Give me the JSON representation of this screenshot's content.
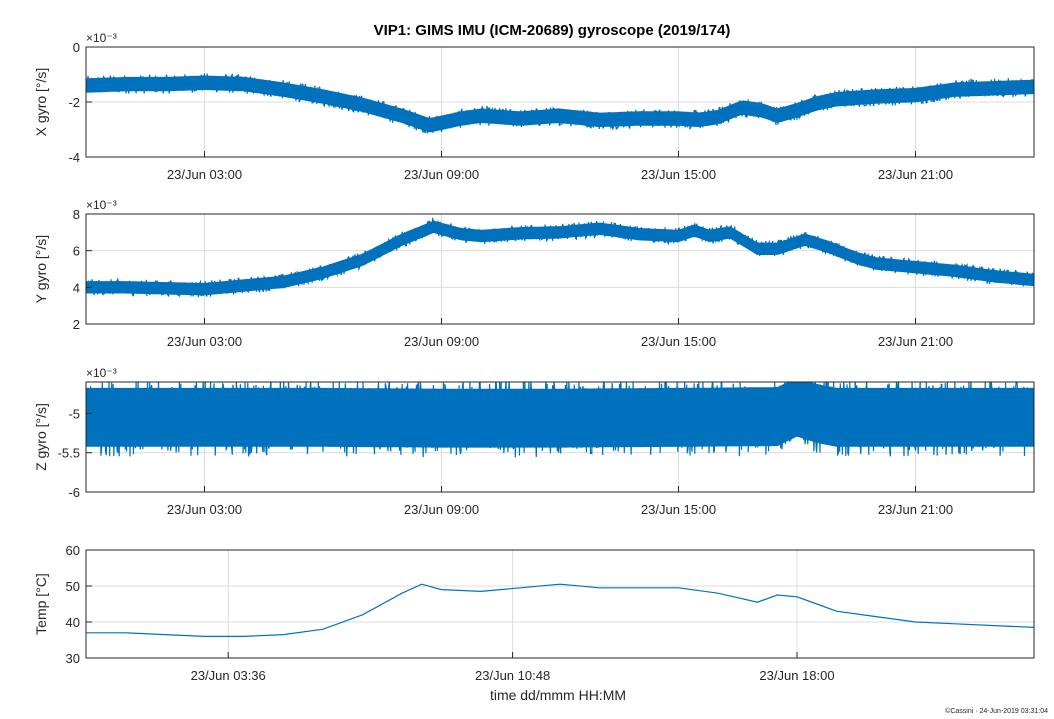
{
  "figure": {
    "title": "VIP1: GIMS IMU (ICM-20689) gyroscope (2019/174)",
    "xlabel": "time dd/mmm HH:MM",
    "footer": "©Cassini · 24-Jun-2019 03:31:04",
    "series_color": "#0072bd"
  },
  "chart_data": [
    {
      "type": "line",
      "ylabel": "X gyro [°/s]",
      "exponent_label": "×10⁻³",
      "ylim": [
        -4,
        0
      ],
      "yticks": [
        -4,
        -2,
        0
      ],
      "ytick_labels": [
        "-4",
        "-2",
        "0"
      ],
      "xlim_hours": [
        0,
        24
      ],
      "xticks_hours": [
        3,
        9,
        15,
        21
      ],
      "xtick_labels": [
        "23/Jun 03:00",
        "23/Jun 09:00",
        "23/Jun 15:00",
        "23/Jun 21:00"
      ],
      "grid": true,
      "noise_amplitude": 0.35,
      "series": [
        {
          "x_hours": [
            0,
            1,
            2,
            3,
            4,
            5,
            6,
            7,
            8,
            8.7,
            9.5,
            10,
            11,
            12,
            13,
            14,
            15,
            15.5,
            16,
            16.6,
            17.1,
            17.5,
            18,
            18.5,
            19,
            20,
            21,
            22,
            23,
            24
          ],
          "values": [
            -1.4,
            -1.35,
            -1.35,
            -1.3,
            -1.35,
            -1.55,
            -1.8,
            -2.1,
            -2.5,
            -2.85,
            -2.6,
            -2.5,
            -2.6,
            -2.5,
            -2.65,
            -2.6,
            -2.6,
            -2.65,
            -2.55,
            -2.2,
            -2.3,
            -2.5,
            -2.3,
            -2.05,
            -1.9,
            -1.8,
            -1.75,
            -1.55,
            -1.5,
            -1.45
          ]
        }
      ]
    },
    {
      "type": "line",
      "ylabel": "Y gyro [°/s]",
      "exponent_label": "×10⁻³",
      "ylim": [
        2,
        8
      ],
      "yticks": [
        2,
        4,
        6,
        8
      ],
      "ytick_labels": [
        "2",
        "4",
        "6",
        "8"
      ],
      "xlim_hours": [
        0,
        24
      ],
      "xticks_hours": [
        3,
        9,
        15,
        21
      ],
      "xtick_labels": [
        "23/Jun 03:00",
        "23/Jun 09:00",
        "23/Jun 15:00",
        "23/Jun 21:00"
      ],
      "grid": true,
      "noise_amplitude": 0.45,
      "series": [
        {
          "x_hours": [
            0,
            1,
            2,
            3,
            4,
            5,
            6,
            7,
            8,
            8.8,
            9.5,
            10,
            11,
            12,
            13,
            14,
            15,
            15.4,
            15.8,
            16.3,
            17,
            17.5,
            18.2,
            18.8,
            19.5,
            20,
            21,
            22,
            23,
            24
          ],
          "values": [
            4.0,
            4.0,
            3.95,
            3.9,
            4.1,
            4.3,
            4.8,
            5.5,
            6.6,
            7.3,
            6.9,
            6.8,
            6.95,
            7.0,
            7.2,
            6.9,
            6.8,
            7.1,
            6.8,
            7.0,
            6.1,
            6.1,
            6.6,
            6.2,
            5.6,
            5.3,
            5.1,
            4.9,
            4.6,
            4.4
          ]
        }
      ]
    },
    {
      "type": "line",
      "ylabel": "Z gyro [°/s]",
      "exponent_label": "×10⁻³",
      "ylim": [
        -6,
        -4.6
      ],
      "yticks": [
        -6,
        -5.5,
        -5
      ],
      "ytick_labels": [
        "-6",
        "-5.5",
        "-5"
      ],
      "xlim_hours": [
        0,
        24
      ],
      "xticks_hours": [
        3,
        9,
        15,
        21
      ],
      "xtick_labels": [
        "23/Jun 03:00",
        "23/Jun 09:00",
        "23/Jun 15:00",
        "23/Jun 21:00"
      ],
      "grid": true,
      "noise_amplitude": 0.5,
      "series": [
        {
          "x_hours": [
            0,
            3,
            6,
            9,
            12,
            15,
            17.5,
            18,
            18.5,
            19,
            21,
            24
          ],
          "values": [
            -5.05,
            -5.05,
            -5.05,
            -5.06,
            -5.06,
            -5.05,
            -5.04,
            -4.92,
            -5.0,
            -5.05,
            -5.05,
            -5.05
          ]
        }
      ]
    },
    {
      "type": "line",
      "ylabel": "Temp [°C]",
      "exponent_label": "",
      "ylim": [
        30,
        60
      ],
      "yticks": [
        30,
        40,
        50,
        60
      ],
      "ytick_labels": [
        "30",
        "40",
        "50",
        "60"
      ],
      "xlim_hours": [
        0,
        24
      ],
      "xticks_hours": [
        3.6,
        10.8,
        18.0
      ],
      "xtick_labels": [
        "23/Jun 03:36",
        "23/Jun 10:48",
        "23/Jun 18:00"
      ],
      "grid": true,
      "noise_amplitude": 0,
      "series": [
        {
          "x_hours": [
            0,
            1,
            2,
            3,
            4,
            5,
            6,
            7,
            8,
            8.5,
            9,
            10,
            11,
            12,
            13,
            14,
            15,
            16,
            17,
            17.5,
            18,
            18.5,
            19,
            20,
            21,
            22,
            23,
            24
          ],
          "values": [
            37,
            37,
            36.5,
            36,
            36,
            36.5,
            38,
            42,
            48,
            50.5,
            49,
            48.5,
            49.5,
            50.5,
            49.5,
            49.5,
            49.5,
            48,
            45.5,
            47.5,
            47,
            45,
            43,
            41.5,
            40,
            39.5,
            39,
            38.5
          ]
        }
      ]
    }
  ]
}
